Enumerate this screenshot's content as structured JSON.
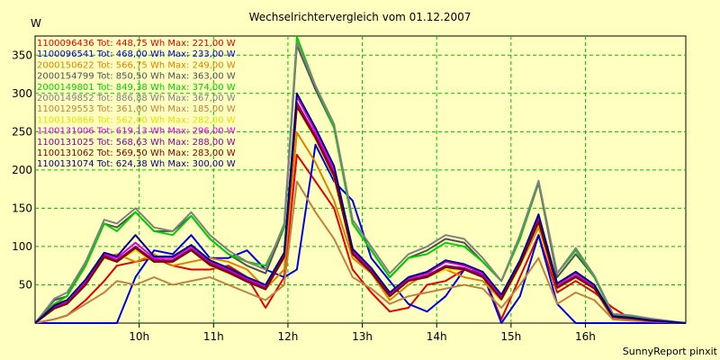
{
  "chart_data": {
    "type": "line",
    "title": "Wechselrichtervergleich vom 01.12.2007",
    "ylabel": "W",
    "xlabel": "",
    "ylim": [
      0,
      375
    ],
    "yticks": [
      50,
      100,
      150,
      200,
      250,
      300,
      350
    ],
    "xtick_labels": [
      "10h",
      "11h",
      "12h",
      "13h",
      "14h",
      "15h",
      "16h"
    ],
    "xtick_hours": [
      10,
      11,
      12,
      13,
      14,
      15,
      16
    ],
    "xlim_hours": [
      8.6,
      17.35
    ],
    "grid": true,
    "legend_position": "top-left",
    "footer": "SunnyReport pinxit",
    "x": [
      8.6,
      8.86,
      9.03,
      9.28,
      9.53,
      9.7,
      9.95,
      10.2,
      10.45,
      10.7,
      10.95,
      11.2,
      11.45,
      11.7,
      11.95,
      12.12,
      12.37,
      12.62,
      12.87,
      13.12,
      13.37,
      13.62,
      13.87,
      14.12,
      14.37,
      14.62,
      14.87,
      15.12,
      15.37,
      15.62,
      15.87,
      16.12,
      16.37,
      16.62,
      16.87,
      17.35
    ],
    "series": [
      {
        "name": "1100096436 Tot: 448,75 Wh Max: 221,00 W",
        "color": "#e00000",
        "values": [
          0,
          5,
          10,
          30,
          55,
          75,
          80,
          85,
          75,
          70,
          70,
          75,
          60,
          20,
          60,
          220,
          185,
          150,
          70,
          40,
          15,
          20,
          50,
          55,
          70,
          65,
          5,
          60,
          115,
          40,
          55,
          40,
          20,
          5,
          2,
          0
        ]
      },
      {
        "name": "1100096541 Tot: 468,00 Wh Max: 233,00 W",
        "color": "#0000e0",
        "values": [
          0,
          0,
          0,
          0,
          0,
          0,
          60,
          95,
          90,
          115,
          85,
          85,
          95,
          70,
          60,
          70,
          233,
          185,
          160,
          85,
          55,
          25,
          15,
          35,
          70,
          65,
          0,
          35,
          115,
          25,
          0,
          0,
          0,
          0,
          0,
          0
        ]
      },
      {
        "name": "2000150622 Tot: 566,75 Wh Max: 249,00 W",
        "color": "#e08000",
        "values": [
          0,
          25,
          30,
          55,
          85,
          90,
          80,
          90,
          75,
          80,
          85,
          80,
          70,
          45,
          70,
          249,
          210,
          160,
          85,
          65,
          30,
          50,
          65,
          70,
          60,
          55,
          30,
          75,
          125,
          50,
          60,
          45,
          5,
          5,
          3,
          0
        ]
      },
      {
        "name": "2000154799 Tot: 850,50 Wh Max: 363,00 W",
        "color": "#505050",
        "values": [
          0,
          30,
          35,
          80,
          130,
          125,
          145,
          120,
          120,
          140,
          110,
          90,
          75,
          65,
          125,
          363,
          305,
          255,
          130,
          95,
          60,
          85,
          95,
          110,
          105,
          80,
          55,
          110,
          183,
          60,
          90,
          60,
          10,
          8,
          5,
          0
        ]
      },
      {
        "name": "2000149801 Tot: 849,38 Wh Max: 374,00 W",
        "color": "#00d000",
        "values": [
          0,
          25,
          35,
          75,
          130,
          120,
          145,
          120,
          115,
          140,
          110,
          90,
          80,
          75,
          125,
          374,
          310,
          255,
          130,
          95,
          60,
          85,
          90,
          105,
          100,
          80,
          55,
          110,
          185,
          65,
          95,
          60,
          10,
          8,
          5,
          0
        ]
      },
      {
        "name": "2000149852 Tot: 886,88 Wh Max: 367,00 W",
        "color": "#808080",
        "values": [
          0,
          32,
          40,
          80,
          135,
          130,
          150,
          125,
          120,
          145,
          115,
          95,
          80,
          70,
          130,
          367,
          310,
          260,
          135,
          100,
          65,
          90,
          100,
          115,
          110,
          85,
          55,
          115,
          186,
          65,
          98,
          62,
          12,
          10,
          6,
          0
        ]
      },
      {
        "name": "1100129553 Tot: 361,00 Wh Max: 185,00 W",
        "color": "#c08040",
        "values": [
          0,
          5,
          10,
          25,
          40,
          55,
          50,
          60,
          50,
          55,
          60,
          50,
          40,
          30,
          50,
          185,
          145,
          110,
          60,
          45,
          25,
          35,
          40,
          45,
          50,
          45,
          20,
          50,
          85,
          25,
          40,
          30,
          5,
          3,
          2,
          0
        ]
      },
      {
        "name": "1100130866 Tot: 562,00 Wh Max: 282,00 W",
        "color": "#e0e000",
        "values": [
          0,
          20,
          25,
          50,
          85,
          80,
          95,
          80,
          80,
          95,
          75,
          65,
          55,
          45,
          85,
          282,
          240,
          190,
          90,
          65,
          35,
          55,
          60,
          70,
          70,
          60,
          30,
          75,
          130,
          45,
          60,
          45,
          8,
          6,
          3,
          0
        ]
      },
      {
        "name": "1100131006 Tot: 619,13 Wh Max: 296,00 W",
        "color": "#e000e0",
        "values": [
          0,
          22,
          28,
          55,
          90,
          85,
          105,
          85,
          85,
          100,
          80,
          70,
          58,
          48,
          90,
          296,
          250,
          200,
          95,
          70,
          38,
          58,
          65,
          80,
          75,
          65,
          35,
          80,
          140,
          50,
          65,
          48,
          8,
          6,
          3,
          0
        ]
      },
      {
        "name": "1100131025 Tot: 568,63 Wh Max: 288,00 W",
        "color": "#900090",
        "values": [
          0,
          20,
          26,
          52,
          88,
          82,
          100,
          82,
          82,
          97,
          78,
          68,
          56,
          46,
          88,
          288,
          245,
          195,
          92,
          68,
          36,
          56,
          62,
          75,
          72,
          62,
          32,
          78,
          135,
          47,
          62,
          46,
          8,
          6,
          3,
          0
        ]
      },
      {
        "name": "1100131062 Tot: 569,50 Wh Max: 283,00 W",
        "color": "#800000",
        "values": [
          0,
          19,
          25,
          50,
          86,
          80,
          98,
          80,
          80,
          95,
          76,
          66,
          54,
          44,
          86,
          283,
          242,
          192,
          90,
          66,
          35,
          55,
          60,
          73,
          70,
          60,
          31,
          76,
          132,
          46,
          60,
          45,
          8,
          6,
          3,
          0
        ]
      },
      {
        "name": "1100131074 Tot: 624,38 Wh Max: 300,00 W",
        "color": "#000080",
        "values": [
          0,
          23,
          30,
          57,
          92,
          87,
          115,
          87,
          87,
          102,
          82,
          72,
          60,
          50,
          92,
          300,
          255,
          205,
          97,
          72,
          40,
          60,
          67,
          82,
          77,
          67,
          37,
          82,
          142,
          52,
          67,
          50,
          9,
          7,
          4,
          0
        ]
      }
    ]
  }
}
